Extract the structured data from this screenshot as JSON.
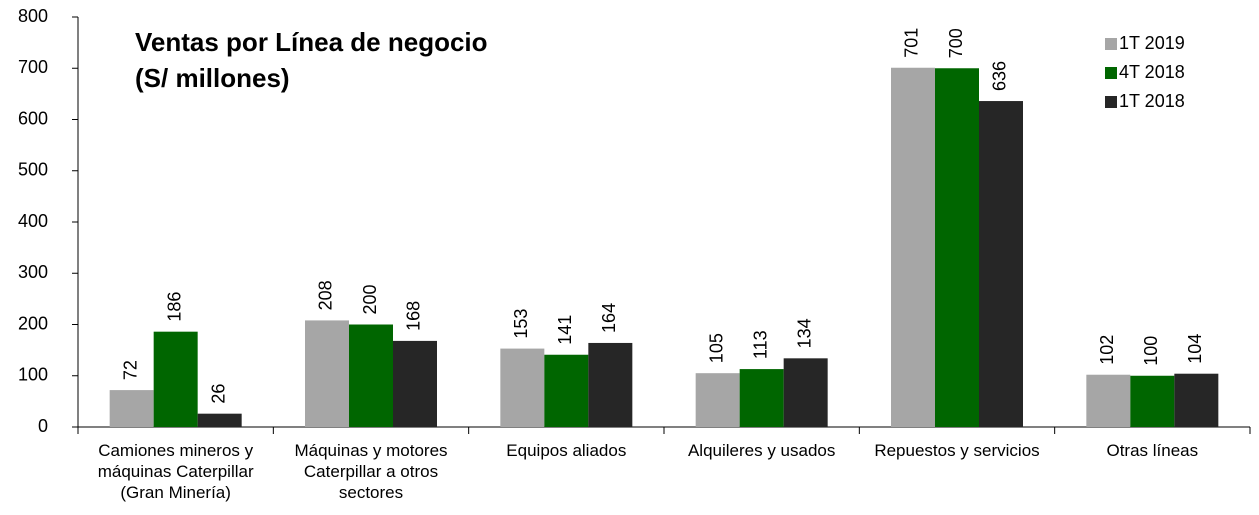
{
  "chart_data": {
    "type": "bar",
    "title": "Ventas por Línea de negocio",
    "subtitle": "(S/ millones)",
    "categories": [
      "Camiones mineros y máquinas Caterpillar (Gran Minería)",
      "Máquinas y motores Caterpillar a otros sectores",
      "Equipos aliados",
      "Alquileres y usados",
      "Repuestos y servicios",
      "Otras líneas"
    ],
    "series": [
      {
        "name": "1T 2019",
        "color": "#a6a6a6",
        "values": [
          72,
          208,
          153,
          105,
          701,
          102
        ]
      },
      {
        "name": "4T 2018",
        "color": "#006600",
        "values": [
          186,
          200,
          141,
          113,
          700,
          100
        ]
      },
      {
        "name": "1T 2018",
        "color": "#262626",
        "values": [
          26,
          168,
          164,
          134,
          636,
          104
        ]
      }
    ],
    "ylim": [
      0,
      800
    ],
    "yticks": [
      0,
      100,
      200,
      300,
      400,
      500,
      600,
      700,
      800
    ],
    "grid": false,
    "legend": "top-right"
  }
}
